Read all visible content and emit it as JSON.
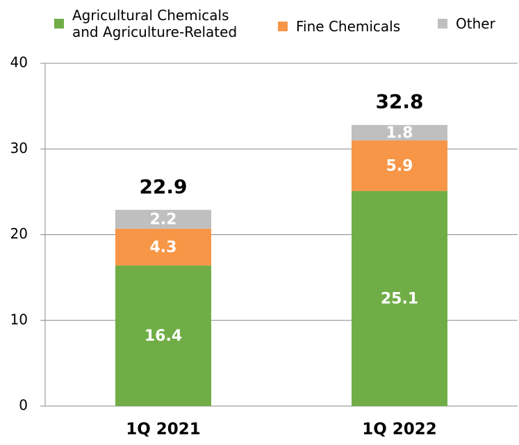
{
  "chart_data": {
    "type": "stacked_bar",
    "categories": [
      "1Q 2021",
      "1Q 2022"
    ],
    "series": [
      {
        "name": "Agricultural Chemicals and Agriculture-Related",
        "color": "#70ad47",
        "values": [
          16.4,
          25.1
        ]
      },
      {
        "name": "Fine Chemicals",
        "color": "#f79646",
        "values": [
          4.3,
          5.9
        ]
      },
      {
        "name": "Other",
        "color": "#bfbfbf",
        "values": [
          2.2,
          1.8
        ]
      }
    ],
    "totals": [
      22.9,
      32.8
    ],
    "ylim": [
      0,
      40
    ],
    "yticks": [
      0,
      10,
      20,
      30,
      40
    ],
    "grid": true,
    "legend": "top"
  }
}
